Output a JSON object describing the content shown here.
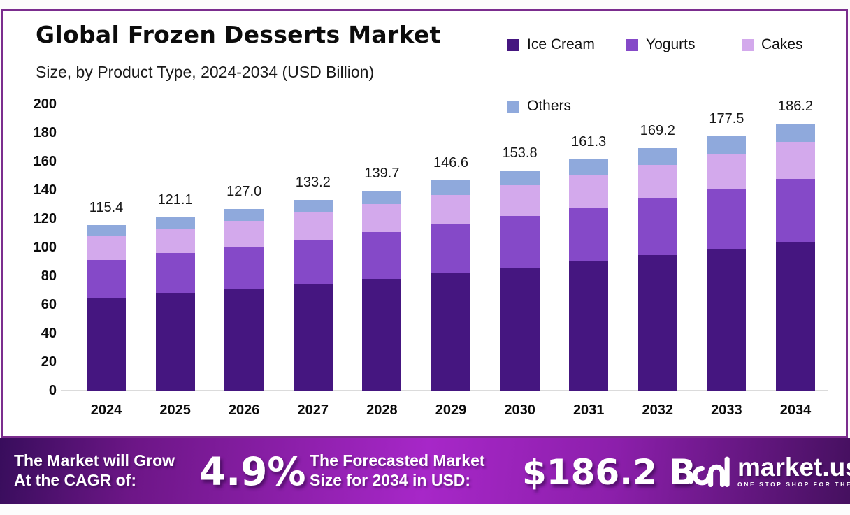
{
  "header": {
    "title": "Global Frozen Desserts Market",
    "subtitle": "Size, by Product Type, 2024-2034 (USD Billion)"
  },
  "chart_data": {
    "type": "bar",
    "stacked": true,
    "title": "Global Frozen Desserts Market Size, by Product Type, 2024-2034 (USD Billion)",
    "categories": [
      "2024",
      "2025",
      "2026",
      "2027",
      "2028",
      "2029",
      "2030",
      "2031",
      "2032",
      "2033",
      "2034"
    ],
    "series": [
      {
        "name": "Ice Cream",
        "color": "#451680",
        "values": [
          64.4,
          67.6,
          70.9,
          74.4,
          78.0,
          81.9,
          85.9,
          90.1,
          94.5,
          99.1,
          104.0
        ]
      },
      {
        "name": "Yogurts",
        "color": "#8549C8",
        "values": [
          27.0,
          28.3,
          29.7,
          31.1,
          32.7,
          34.3,
          36.0,
          37.7,
          39.6,
          41.5,
          43.6
        ]
      },
      {
        "name": "Cakes",
        "color": "#D3A9EC",
        "values": [
          16.2,
          17.0,
          17.8,
          18.7,
          19.6,
          20.5,
          21.5,
          22.5,
          23.6,
          24.8,
          26.0
        ]
      },
      {
        "name": "Others",
        "color": "#8FA9DC",
        "values": [
          7.8,
          8.2,
          8.6,
          9.0,
          9.4,
          9.9,
          10.4,
          11.0,
          11.5,
          12.1,
          12.6
        ]
      }
    ],
    "totals": [
      115.4,
      121.1,
      127.0,
      133.2,
      139.7,
      146.6,
      153.8,
      161.3,
      169.2,
      177.5,
      186.2
    ],
    "total_labels": [
      "115.4",
      "121.1",
      "127.0",
      "133.2",
      "139.7",
      "146.6",
      "153.8",
      "161.3",
      "169.2",
      "177.5",
      "186.2"
    ],
    "xlabel": "",
    "ylabel": "",
    "ylim": [
      0,
      200
    ],
    "y_ticks": [
      0,
      20,
      40,
      60,
      80,
      100,
      120,
      140,
      160,
      180,
      200
    ],
    "grid": false,
    "legend_position": "top-right"
  },
  "banner": {
    "grow_line1": "The Market will Grow",
    "grow_line2": "At the CAGR of:",
    "cagr_value": "4.9%",
    "forecast_line1": "The Forecasted Market",
    "forecast_line2": "Size for 2034 in USD:",
    "forecast_value": "$186.2 B",
    "brand": {
      "name": "market.us",
      "tagline": "ONE STOP SHOP FOR THE REPORTS"
    }
  },
  "colors": {
    "card_border": "#7B2D8E",
    "banner_gradient_start": "#380D5C",
    "banner_gradient_mid": "#A727C8",
    "banner_gradient_end": "#45105F",
    "axis_line": "#DBDBDB",
    "text": "#0C0C0C"
  }
}
